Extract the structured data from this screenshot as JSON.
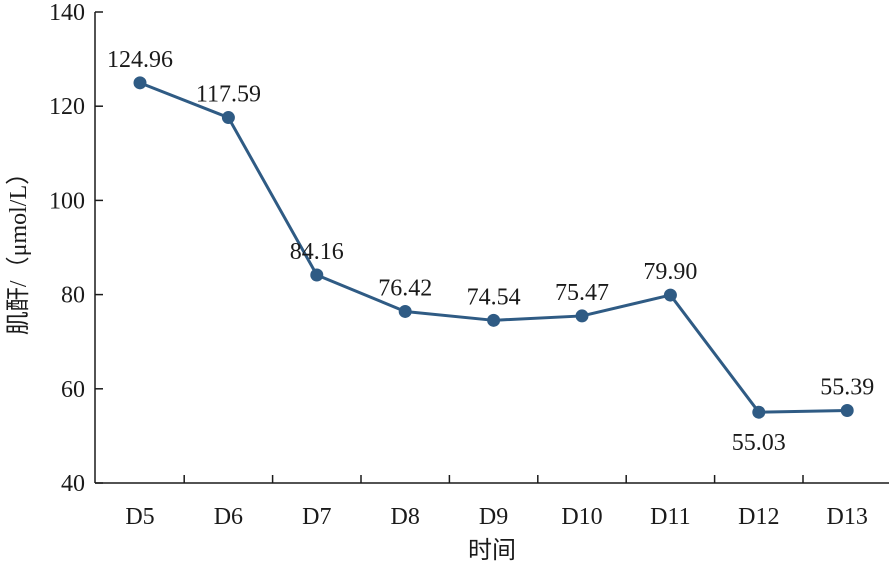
{
  "chart_data": {
    "type": "line",
    "categories": [
      "D5",
      "D6",
      "D7",
      "D8",
      "D9",
      "D10",
      "D11",
      "D12",
      "D13"
    ],
    "series": [
      {
        "values": [
          124.96,
          117.59,
          84.16,
          76.42,
          74.54,
          75.47,
          79.9,
          55.03,
          55.39
        ],
        "labels": [
          "124.96",
          "117.59",
          "84.16",
          "76.42",
          "74.54",
          "75.47",
          "79.90",
          "55.03",
          "55.39"
        ],
        "color": "#2f5b84"
      }
    ],
    "xlabel": "时间",
    "ylabel": "肌酐/（μmol/L）",
    "ylim": [
      40,
      140
    ],
    "yticks": [
      "40",
      "60",
      "80",
      "100",
      "120",
      "140"
    ],
    "grid": false,
    "legend": "none"
  }
}
